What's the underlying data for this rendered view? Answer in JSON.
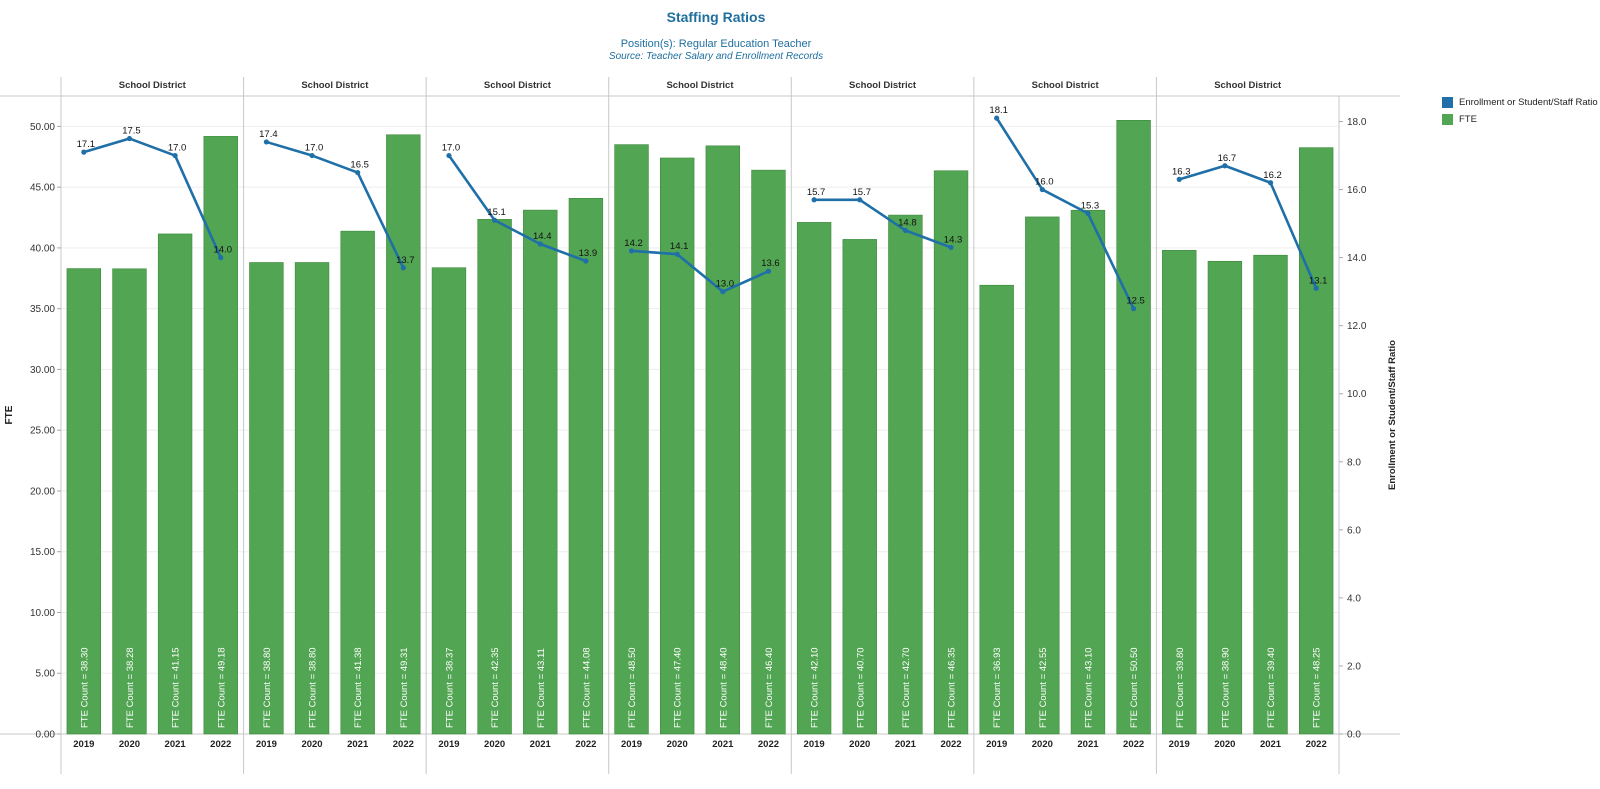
{
  "title": "Staffing Ratios",
  "subtitle": "Position(s): Regular Education Teacher",
  "source": "Source: Teacher Salary and Enrollment Records",
  "legend": [
    {
      "label": "Enrollment or Student/Staff Ratio",
      "color": "#1f6fa8"
    },
    {
      "label": "FTE",
      "color": "#52a552"
    }
  ],
  "chart_data": {
    "type": "bar",
    "combo": "bar + line (dual axis)",
    "ylabel": "FTE",
    "y2label": "Enrollment or Student/Staff Ratio",
    "ylim": [
      0,
      52.5
    ],
    "y2lim": [
      0,
      18.75
    ],
    "yticks": [
      "0.00",
      "5.00",
      "10.00",
      "15.00",
      "20.00",
      "25.00",
      "30.00",
      "35.00",
      "40.00",
      "45.00",
      "50.00"
    ],
    "y2ticks": [
      "0.0",
      "2.0",
      "4.0",
      "6.0",
      "8.0",
      "10.0",
      "12.0",
      "14.0",
      "16.0",
      "18.0"
    ],
    "categories": [
      "2019",
      "2020",
      "2021",
      "2022"
    ],
    "bar_label_prefix": "FTE Count = ",
    "grid": "horizontal",
    "legend_position": "right",
    "panels": [
      {
        "header": "School District",
        "fte": [
          "38.30",
          "38.28",
          "41.15",
          "49.18"
        ],
        "ratio": [
          "17.1",
          "17.5",
          "17.0",
          "14.0"
        ]
      },
      {
        "header": "School District",
        "fte": [
          "38.80",
          "38.80",
          "41.38",
          "49.31"
        ],
        "ratio": [
          "17.4",
          "17.0",
          "16.5",
          "13.7"
        ]
      },
      {
        "header": "School District",
        "fte": [
          "38.37",
          "42.35",
          "43.11",
          "44.08"
        ],
        "ratio": [
          "17.0",
          "15.1",
          "14.4",
          "13.9"
        ]
      },
      {
        "header": "School District",
        "fte": [
          "48.50",
          "47.40",
          "48.40",
          "46.40"
        ],
        "ratio": [
          "14.2",
          "14.1",
          "13.0",
          "13.6"
        ]
      },
      {
        "header": "School District",
        "fte": [
          "42.10",
          "40.70",
          "42.70",
          "46.35"
        ],
        "ratio": [
          "15.7",
          "15.7",
          "14.8",
          "14.3"
        ]
      },
      {
        "header": "School District",
        "fte": [
          "36.93",
          "42.55",
          "43.10",
          "50.50"
        ],
        "ratio": [
          "18.1",
          "16.0",
          "15.3",
          "12.5"
        ]
      },
      {
        "header": "School District",
        "fte": [
          "39.80",
          "38.90",
          "39.40",
          "48.25"
        ],
        "ratio": [
          "16.3",
          "16.7",
          "16.2",
          "13.1"
        ]
      }
    ]
  }
}
